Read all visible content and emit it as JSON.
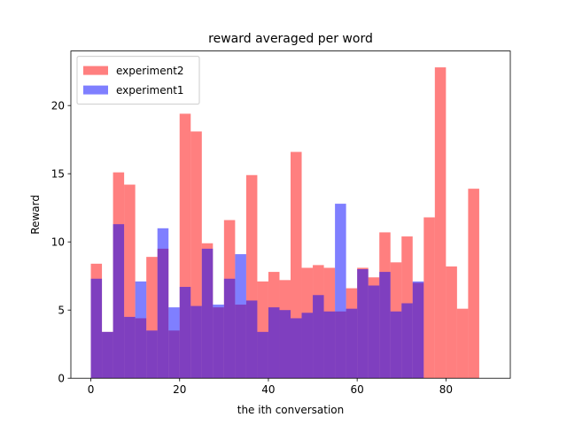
{
  "chart_data": {
    "type": "bar",
    "title": "reward averaged per word",
    "xlabel": "the ith conversation",
    "ylabel": "Reward",
    "xlim": [
      -4.5,
      94.5
    ],
    "ylim": [
      0,
      24
    ],
    "xticks": [
      0,
      20,
      40,
      60,
      80
    ],
    "yticks": [
      0,
      5,
      10,
      15,
      20,
      25
    ],
    "legend_position": "upper-left",
    "bin_width": 2.5,
    "bin_start": 0,
    "series": [
      {
        "name": "experiment2",
        "color": "#ff0000",
        "alpha": 0.5,
        "values": [
          8.4,
          3.4,
          15.1,
          14.2,
          4.4,
          8.9,
          9.5,
          3.5,
          19.4,
          18.1,
          9.9,
          5.2,
          11.6,
          5.4,
          14.9,
          7.1,
          7.8,
          7.2,
          16.6,
          8.1,
          8.3,
          8.1,
          4.9,
          6.6,
          8.1,
          7.4,
          10.7,
          8.5,
          10.4,
          7.0,
          11.8,
          22.8,
          8.2,
          5.1,
          13.9
        ]
      },
      {
        "name": "experiment1",
        "color": "#0000ff",
        "alpha": 0.5,
        "values": [
          7.3,
          3.4,
          11.3,
          4.5,
          7.1,
          3.5,
          11.0,
          5.2,
          6.7,
          5.3,
          9.5,
          5.4,
          7.3,
          9.1,
          5.7,
          3.4,
          5.2,
          5.0,
          4.4,
          4.8,
          6.1,
          4.9,
          12.8,
          5.1,
          8.0,
          6.8,
          7.8,
          4.9,
          5.5,
          7.1
        ]
      }
    ]
  }
}
